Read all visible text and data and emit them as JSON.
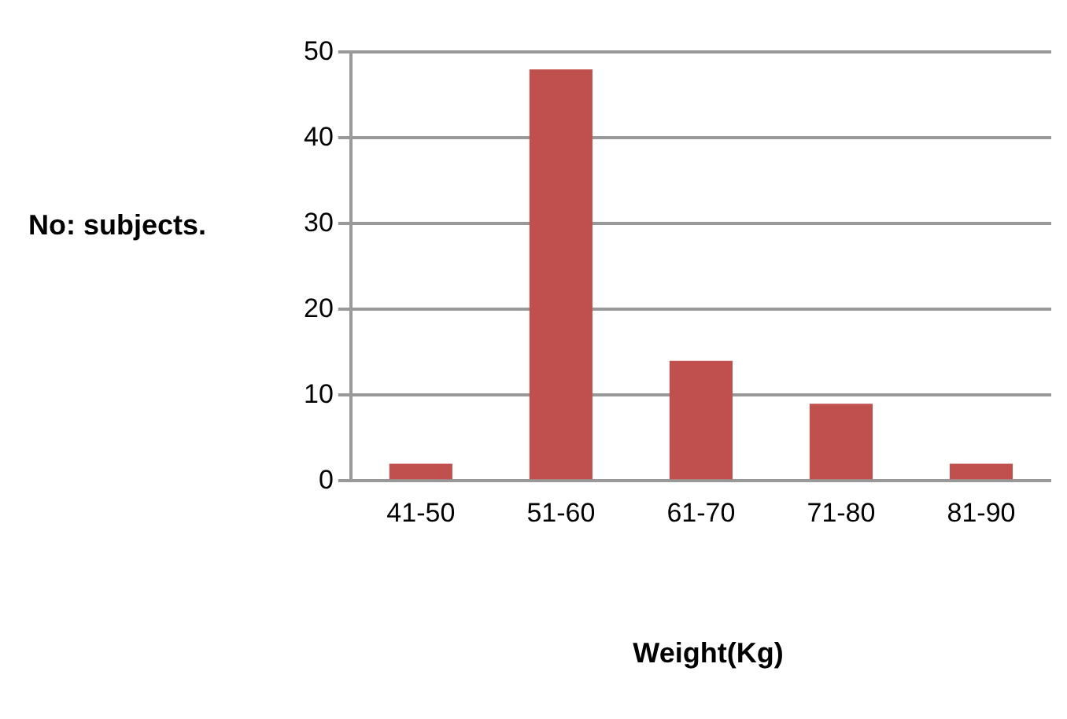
{
  "chart_data": {
    "type": "bar",
    "xlabel": "Weight(Kg)",
    "ylabel": "No: subjects.",
    "categories": [
      "41-50",
      "51-60",
      "61-70",
      "71-80",
      "81-90"
    ],
    "values": [
      2,
      48,
      14,
      9,
      2
    ],
    "color": "#c0504d",
    "ylim": [
      0,
      50
    ],
    "yticks": [
      0,
      10,
      20,
      30,
      40,
      50
    ],
    "grid": "y"
  }
}
